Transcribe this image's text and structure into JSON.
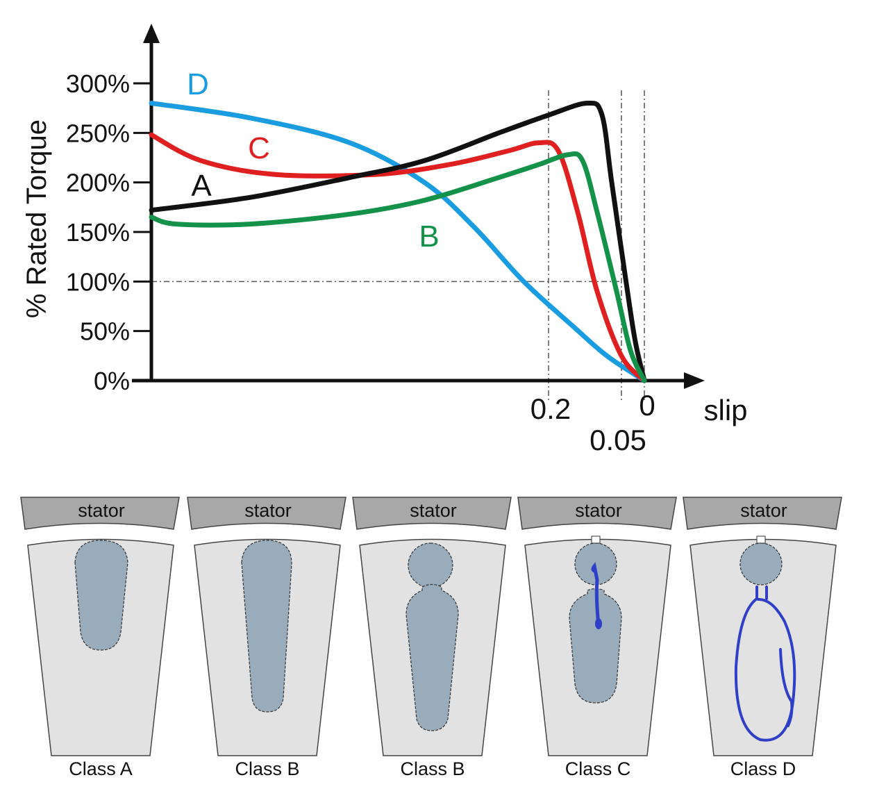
{
  "chart_data": {
    "type": "line",
    "ylabel": "% Rated Torque",
    "xlabel": "slip",
    "y_ticks": [
      "0%",
      "50%",
      "100%",
      "150%",
      "200%",
      "250%",
      "300%"
    ],
    "y_tick_values": [
      0,
      50,
      100,
      150,
      200,
      250,
      300
    ],
    "x_ticks": [
      {
        "label": "0.2",
        "value": 0.2
      },
      {
        "label": "0.05",
        "value": 0.05
      },
      {
        "label": "0",
        "value": 0
      }
    ],
    "ylim": [
      0,
      300
    ],
    "x_direction": "slip decreases to the right (1 at left, 0 at right)",
    "reference_lines": {
      "horizontal": [
        100
      ],
      "vertical": [
        0.2,
        0.05,
        0
      ]
    },
    "series": [
      {
        "name": "D",
        "color": "#1a9de0",
        "points": [
          [
            1.0,
            280
          ],
          [
            0.8,
            265
          ],
          [
            0.6,
            240
          ],
          [
            0.45,
            200
          ],
          [
            0.35,
            155
          ],
          [
            0.25,
            100
          ],
          [
            0.15,
            55
          ],
          [
            0.08,
            25
          ],
          [
            0.0,
            0
          ]
        ]
      },
      {
        "name": "C",
        "color": "#e02020",
        "points": [
          [
            1.0,
            248
          ],
          [
            0.9,
            222
          ],
          [
            0.75,
            208
          ],
          [
            0.55,
            208
          ],
          [
            0.4,
            218
          ],
          [
            0.28,
            232
          ],
          [
            0.22,
            240
          ],
          [
            0.18,
            232
          ],
          [
            0.14,
            170
          ],
          [
            0.1,
            90
          ],
          [
            0.05,
            25
          ],
          [
            0.0,
            0
          ]
        ]
      },
      {
        "name": "A",
        "color": "#111111",
        "points": [
          [
            1.0,
            172
          ],
          [
            0.8,
            185
          ],
          [
            0.6,
            205
          ],
          [
            0.45,
            222
          ],
          [
            0.3,
            250
          ],
          [
            0.2,
            268
          ],
          [
            0.12,
            280
          ],
          [
            0.09,
            268
          ],
          [
            0.07,
            200
          ],
          [
            0.04,
            100
          ],
          [
            0.02,
            40
          ],
          [
            0.0,
            0
          ]
        ]
      },
      {
        "name": "B",
        "color": "#14924a",
        "points": [
          [
            1.0,
            165
          ],
          [
            0.95,
            158
          ],
          [
            0.8,
            158
          ],
          [
            0.6,
            168
          ],
          [
            0.45,
            182
          ],
          [
            0.3,
            205
          ],
          [
            0.22,
            218
          ],
          [
            0.16,
            228
          ],
          [
            0.13,
            222
          ],
          [
            0.1,
            170
          ],
          [
            0.06,
            90
          ],
          [
            0.03,
            30
          ],
          [
            0.0,
            0
          ]
        ]
      }
    ]
  },
  "rotor_slots": [
    {
      "stator_label": "stator",
      "caption": "Class A"
    },
    {
      "stator_label": "stator",
      "caption": "Class B"
    },
    {
      "stator_label": "stator",
      "caption": "Class B"
    },
    {
      "stator_label": "stator",
      "caption": "Class C"
    },
    {
      "stator_label": "stator",
      "caption": "Class D"
    }
  ],
  "colors": {
    "axis": "#111111",
    "stator_fill": "#a8a8a8",
    "rotor_fill": "#e2e2e2",
    "bar_fill": "#98acbb",
    "annotation_ink": "#2f3fc8"
  }
}
